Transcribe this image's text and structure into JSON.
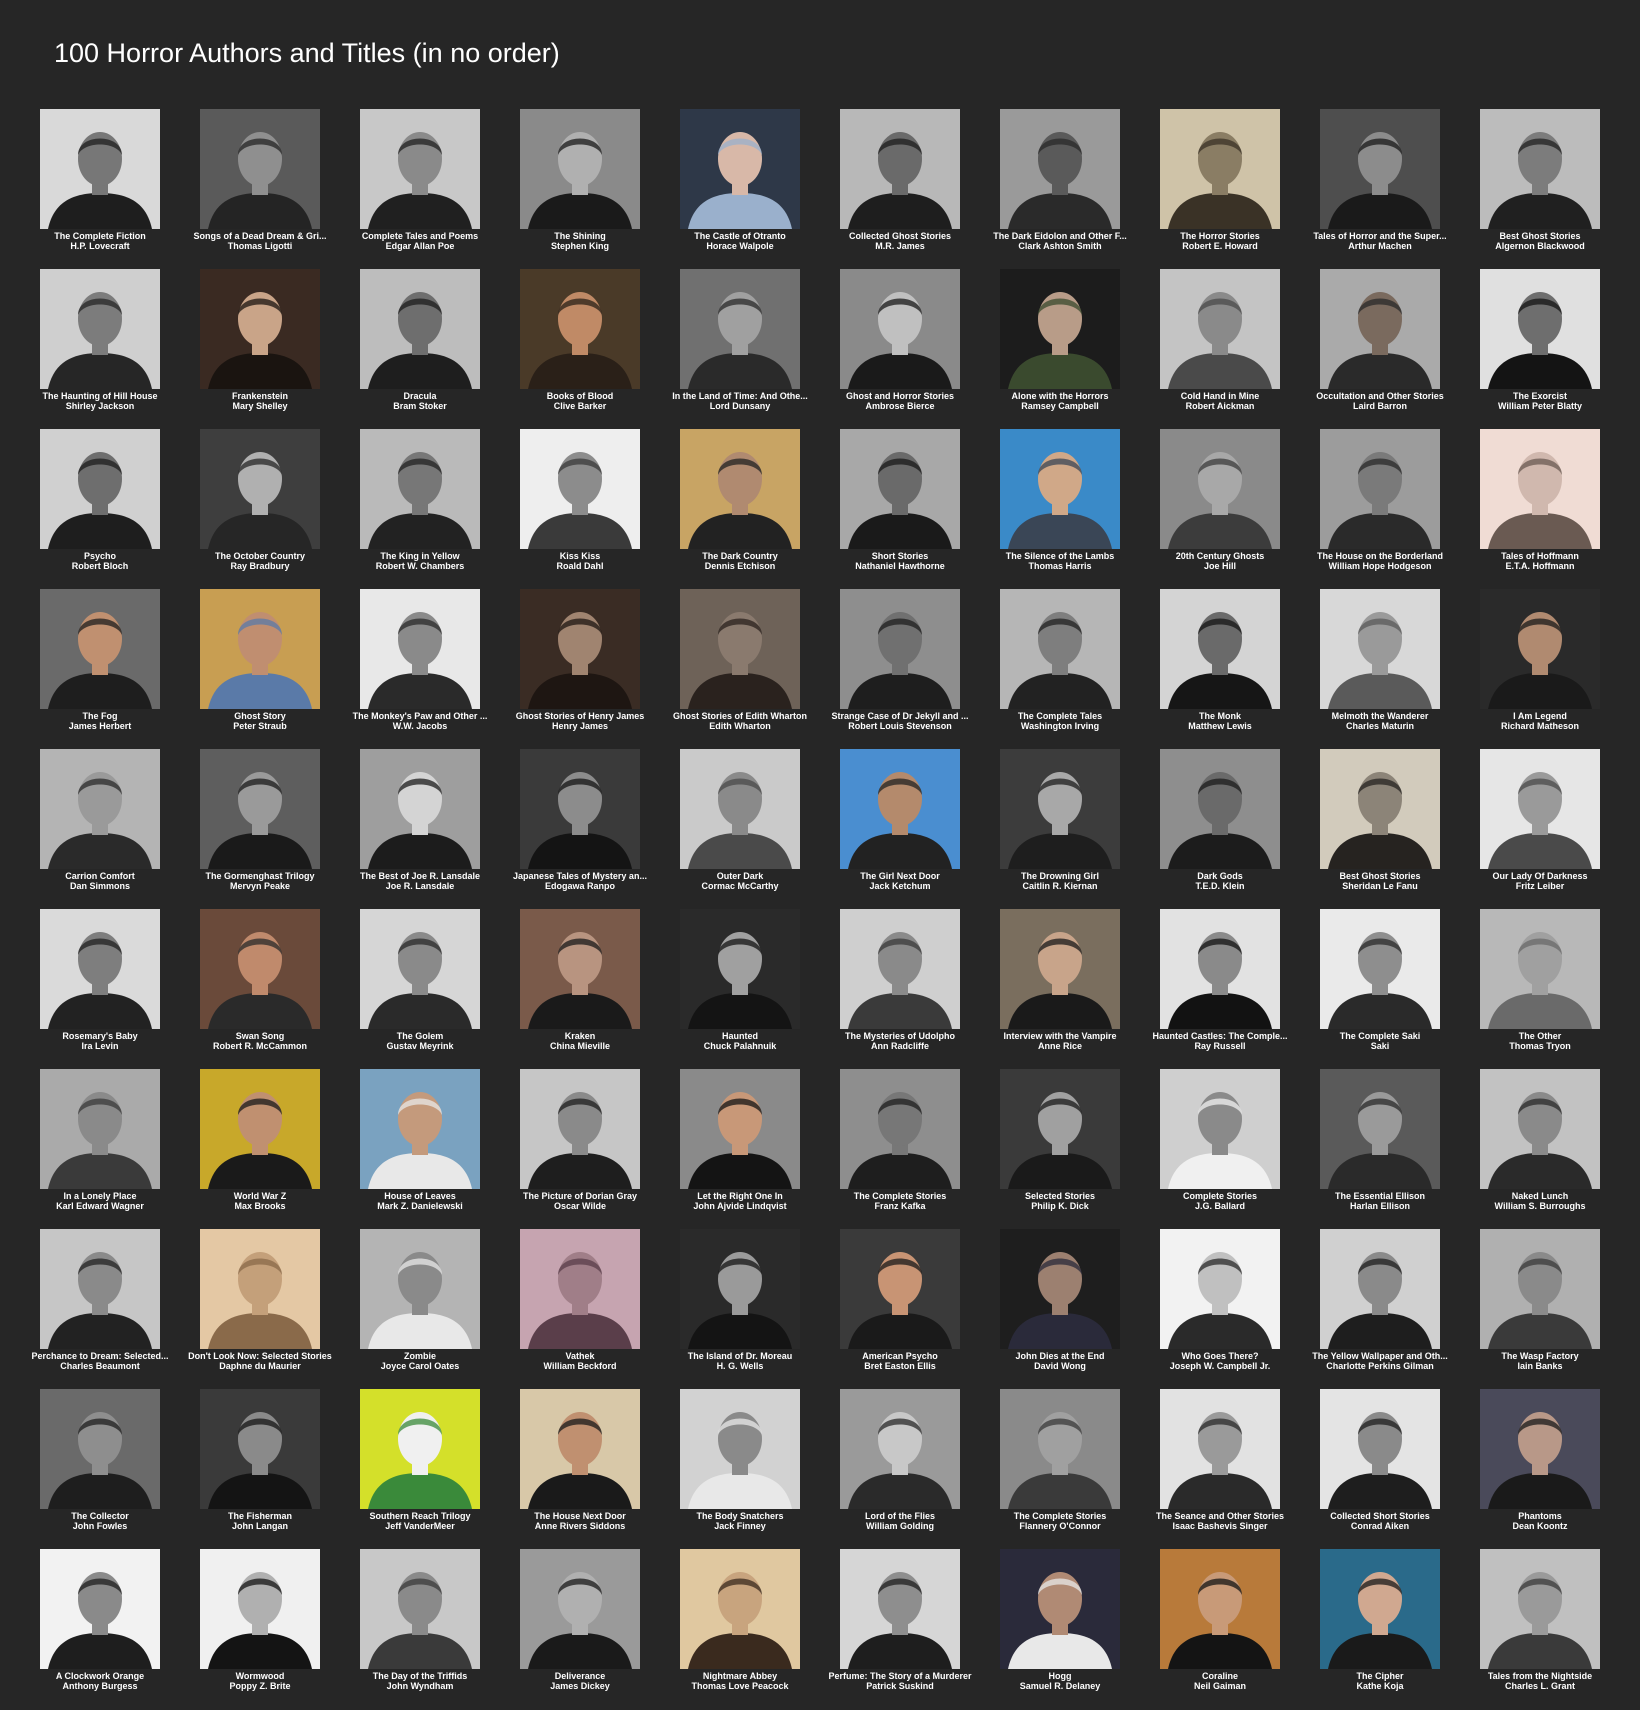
{
  "title": "100 Horror Authors and Titles (in no order)",
  "icon": "author-portrait",
  "items": [
    {
      "title": "The Complete Fiction",
      "author": "H.P. Lovecraft",
      "bg": "#d9d9d9",
      "tone": "#777777",
      "suit": "#1e1e1e"
    },
    {
      "title": "Songs of a Dead Dream & Gri...",
      "author": "Thomas Ligotti",
      "bg": "#5a5a5a",
      "tone": "#8f8f8f",
      "suit": "#242424"
    },
    {
      "title": "Complete Tales and Poems",
      "author": "Edgar Allan Poe",
      "bg": "#c8c8c8",
      "tone": "#8a8a8a",
      "suit": "#202020"
    },
    {
      "title": "The Shining",
      "author": "Stephen King",
      "bg": "#8a8a8a",
      "tone": "#b0b0b0",
      "suit": "#1a1a1a"
    },
    {
      "title": "The Castle of Otranto",
      "author": "Horace Walpole",
      "bg": "#2e3848",
      "tone": "#d8b8a8",
      "suit": "#9ab0cc"
    },
    {
      "title": "Collected Ghost Stories",
      "author": "M.R. James",
      "bg": "#b8b8b8",
      "tone": "#6a6a6a",
      "suit": "#1e1e1e"
    },
    {
      "title": "The Dark Eidolon and Other F...",
      "author": "Clark Ashton Smith",
      "bg": "#9a9a9a",
      "tone": "#5a5a5a",
      "suit": "#2a2a2a"
    },
    {
      "title": "The Horror Stories",
      "author": "Robert E. Howard",
      "bg": "#cfc3a8",
      "tone": "#8a7d64",
      "suit": "#3a3226"
    },
    {
      "title": "Tales of Horror and the Super...",
      "author": "Arthur Machen",
      "bg": "#4e4e4e",
      "tone": "#8c8c8c",
      "suit": "#1a1a1a"
    },
    {
      "title": "Best Ghost Stories",
      "author": "Algernon Blackwood",
      "bg": "#bcbcbc",
      "tone": "#7c7c7c",
      "suit": "#202020"
    },
    {
      "title": "The Haunting of Hill House",
      "author": "Shirley Jackson",
      "bg": "#cfcfcf",
      "tone": "#7c7c7c",
      "suit": "#262626"
    },
    {
      "title": "Frankenstein",
      "author": "Mary Shelley",
      "bg": "#3a2a22",
      "tone": "#c9a488",
      "suit": "#1a1410"
    },
    {
      "title": "Dracula",
      "author": "Bram Stoker",
      "bg": "#bdbdbd",
      "tone": "#6e6e6e",
      "suit": "#1e1e1e"
    },
    {
      "title": "Books of Blood",
      "author": "Clive Barker",
      "bg": "#4a3a28",
      "tone": "#c08a66",
      "suit": "#2a2018"
    },
    {
      "title": "In the Land of Time: And Othe...",
      "author": "Lord Dunsany",
      "bg": "#707070",
      "tone": "#a0a0a0",
      "suit": "#2a2a2a"
    },
    {
      "title": "Ghost and Horror Stories",
      "author": "Ambrose Bierce",
      "bg": "#8a8a8a",
      "tone": "#c0c0c0",
      "suit": "#1a1a1a"
    },
    {
      "title": "Alone with the Horrors",
      "author": "Ramsey Campbell",
      "bg": "#1c1c1c",
      "tone": "#b89c88",
      "suit": "#3a4a2e"
    },
    {
      "title": "Cold Hand in Mine",
      "author": "Robert Aickman",
      "bg": "#c4c4c4",
      "tone": "#8a8a8a",
      "suit": "#4a4a4a"
    },
    {
      "title": "Occultation and Other Stories",
      "author": "Laird Barron",
      "bg": "#aaaaaa",
      "tone": "#7a6a5e",
      "suit": "#2a2a2a"
    },
    {
      "title": "The Exorcist",
      "author": "William Peter Blatty",
      "bg": "#e0e0e0",
      "tone": "#6e6e6e",
      "suit": "#141414"
    },
    {
      "title": "Psycho",
      "author": "Robert Bloch",
      "bg": "#d0d0d0",
      "tone": "#6e6e6e",
      "suit": "#1e1e1e"
    },
    {
      "title": "The October Country",
      "author": "Ray Bradbury",
      "bg": "#3e3e3e",
      "tone": "#b0b0b0",
      "suit": "#262626"
    },
    {
      "title": "The King in Yellow",
      "author": "Robert W. Chambers",
      "bg": "#bababa",
      "tone": "#777777",
      "suit": "#222222"
    },
    {
      "title": "Kiss Kiss",
      "author": "Roald Dahl",
      "bg": "#eeeeee",
      "tone": "#8c8c8c",
      "suit": "#3a3a3a"
    },
    {
      "title": "The Dark Country",
      "author": "Dennis Etchison",
      "bg": "#c8a464",
      "tone": "#b08a70",
      "suit": "#222222"
    },
    {
      "title": "Short Stories",
      "author": "Nathaniel Hawthorne",
      "bg": "#a8a8a8",
      "tone": "#6a6a6a",
      "suit": "#1a1a1a"
    },
    {
      "title": "The Silence of the Lambs",
      "author": "Thomas Harris",
      "bg": "#3a8ac8",
      "tone": "#d0a888",
      "suit": "#3a4656"
    },
    {
      "title": "20th Century Ghosts",
      "author": "Joe Hill",
      "bg": "#8a8a8a",
      "tone": "#a8a8a8",
      "suit": "#3c3c3c"
    },
    {
      "title": "The House on the Borderland",
      "author": "William Hope Hodgeson",
      "bg": "#9c9c9c",
      "tone": "#7a7a7a",
      "suit": "#2a2a2a"
    },
    {
      "title": "Tales of Hoffmann",
      "author": "E.T.A. Hoffmann",
      "bg": "#f0dcd4",
      "tone": "#d0b8ae",
      "suit": "#6a5a52"
    },
    {
      "title": "The Fog",
      "author": "James Herbert",
      "bg": "#6a6a6a",
      "tone": "#c09070",
      "suit": "#1e1e1e"
    },
    {
      "title": "Ghost Story",
      "author": "Peter Straub",
      "bg": "#c89e52",
      "tone": "#c08e70",
      "suit": "#5a7aa8"
    },
    {
      "title": "The Monkey's Paw and Other ...",
      "author": "W.W. Jacobs",
      "bg": "#e8e8e8",
      "tone": "#8a8a8a",
      "suit": "#2a2a2a"
    },
    {
      "title": "Ghost Stories of Henry James",
      "author": "Henry James",
      "bg": "#3a2c24",
      "tone": "#a08470",
      "suit": "#1e1612"
    },
    {
      "title": "Ghost Stories of Edith Wharton",
      "author": "Edith Wharton",
      "bg": "#6e6258",
      "tone": "#8a7a6e",
      "suit": "#2a221e"
    },
    {
      "title": "Strange Case of Dr Jekyll and ...",
      "author": "Robert Louis Stevenson",
      "bg": "#8e8e8e",
      "tone": "#707070",
      "suit": "#1e1e1e"
    },
    {
      "title": "The Complete Tales",
      "author": "Washington Irving",
      "bg": "#b6b6b6",
      "tone": "#7e7e7e",
      "suit": "#222222"
    },
    {
      "title": "The Monk",
      "author": "Matthew Lewis",
      "bg": "#d4d4d4",
      "tone": "#6a6a6a",
      "suit": "#161616"
    },
    {
      "title": "Melmoth the Wanderer",
      "author": "Charles Maturin",
      "bg": "#d8d8d8",
      "tone": "#9a9a9a",
      "suit": "#5a5a5a"
    },
    {
      "title": "I Am Legend",
      "author": "Richard Matheson",
      "bg": "#2a2a2a",
      "tone": "#b08a70",
      "suit": "#1a1a1a"
    },
    {
      "title": "Carrion Comfort",
      "author": "Dan Simmons",
      "bg": "#b4b4b4",
      "tone": "#9a9a9a",
      "suit": "#2a2a2a"
    },
    {
      "title": "The Gormenghast Trilogy",
      "author": "Mervyn Peake",
      "bg": "#5e5e5e",
      "tone": "#9a9a9a",
      "suit": "#1a1a1a"
    },
    {
      "title": "The Best of Joe R. Lansdale",
      "author": "Joe R. Lansdale",
      "bg": "#9e9e9e",
      "tone": "#d4d4d4",
      "suit": "#1c1c1c"
    },
    {
      "title": "Japanese Tales of Mystery an...",
      "author": "Edogawa Ranpo",
      "bg": "#3a3a3a",
      "tone": "#8c8c8c",
      "suit": "#141414"
    },
    {
      "title": "Outer Dark",
      "author": "Cormac McCarthy",
      "bg": "#cacaca",
      "tone": "#8a8a8a",
      "suit": "#4a4a4a"
    },
    {
      "title": "The Girl Next Door",
      "author": "Jack Ketchum",
      "bg": "#4a8ed0",
      "tone": "#b48a6c",
      "suit": "#222222"
    },
    {
      "title": "The Drowning Girl",
      "author": "Caitlin R. Kiernan",
      "bg": "#3c3c3c",
      "tone": "#a8a8a8",
      "suit": "#1e1e1e"
    },
    {
      "title": "Dark Gods",
      "author": "T.E.D. Klein",
      "bg": "#8e8e8e",
      "tone": "#6a6a6a",
      "suit": "#1c1c1c"
    },
    {
      "title": "Best Ghost Stories",
      "author": "Sheridan Le Fanu",
      "bg": "#d2cbbc",
      "tone": "#8c8478",
      "suit": "#262320"
    },
    {
      "title": "Our Lady Of Darkness",
      "author": "Fritz Leiber",
      "bg": "#e6e6e6",
      "tone": "#9a9a9a",
      "suit": "#4a4a4a"
    },
    {
      "title": "Rosemary's Baby",
      "author": "Ira Levin",
      "bg": "#dadada",
      "tone": "#7e7e7e",
      "suit": "#222222"
    },
    {
      "title": "Swan Song",
      "author": "Robert R. McCammon",
      "bg": "#6a4a3a",
      "tone": "#c08a6c",
      "suit": "#2a2a2a"
    },
    {
      "title": "The Golem",
      "author": "Gustav Meyrink",
      "bg": "#d6d6d6",
      "tone": "#8a8a8a",
      "suit": "#2a2a2a"
    },
    {
      "title": "Kraken",
      "author": "China Mieville",
      "bg": "#7a5a4a",
      "tone": "#b89480",
      "suit": "#1a1a1a"
    },
    {
      "title": "Haunted",
      "author": "Chuck Palahnuik",
      "bg": "#2a2a2a",
      "tone": "#a0a0a0",
      "suit": "#141414"
    },
    {
      "title": "The Mysteries of Udolpho",
      "author": "Ann Radcliffe",
      "bg": "#cfcfcf",
      "tone": "#8a8a8a",
      "suit": "#3a3a3a"
    },
    {
      "title": "Interview with the Vampire",
      "author": "Anne Rice",
      "bg": "#7a6e5e",
      "tone": "#c8a48a",
      "suit": "#1a1a1a"
    },
    {
      "title": "Haunted Castles: The Comple...",
      "author": "Ray Russell",
      "bg": "#e2e2e2",
      "tone": "#8a8a8a",
      "suit": "#121212"
    },
    {
      "title": "The Complete Saki",
      "author": "Saki",
      "bg": "#eaeaea",
      "tone": "#8e8e8e",
      "suit": "#2a2a2a"
    },
    {
      "title": "The Other",
      "author": "Thomas Tryon",
      "bg": "#b8b8b8",
      "tone": "#a0a0a0",
      "suit": "#6a6a6a"
    },
    {
      "title": "In a Lonely Place",
      "author": "Karl Edward Wagner",
      "bg": "#aaaaaa",
      "tone": "#8a8a8a",
      "suit": "#3a3a3a"
    },
    {
      "title": "World War Z",
      "author": "Max Brooks",
      "bg": "#c8a82a",
      "tone": "#c09070",
      "suit": "#1a1a1a"
    },
    {
      "title": "House of Leaves",
      "author": "Mark Z. Danielewski",
      "bg": "#7aa2c0",
      "tone": "#c49a7c",
      "suit": "#e8e8e8"
    },
    {
      "title": "The Picture of Dorian Gray",
      "author": "Oscar Wilde",
      "bg": "#c6c6c6",
      "tone": "#8a8a8a",
      "suit": "#1e1e1e"
    },
    {
      "title": "Let the Right One In",
      "author": "John Ajvide Lindqvist",
      "bg": "#8a8a8a",
      "tone": "#c89878",
      "suit": "#141414"
    },
    {
      "title": "The Complete Stories",
      "author": "Franz Kafka",
      "bg": "#8e8e8e",
      "tone": "#777777",
      "suit": "#1e1e1e"
    },
    {
      "title": "Selected Stories",
      "author": "Philip K. Dick",
      "bg": "#3a3a3a",
      "tone": "#a0a0a0",
      "suit": "#1a1a1a"
    },
    {
      "title": "Complete Stories",
      "author": "J.G. Ballard",
      "bg": "#cfcfcf",
      "tone": "#8a8a8a",
      "suit": "#f0f0f0"
    },
    {
      "title": "The Essential Ellison",
      "author": "Harlan Ellison",
      "bg": "#5a5a5a",
      "tone": "#9a9a9a",
      "suit": "#2a2a2a"
    },
    {
      "title": "Naked Lunch",
      "author": "William S. Burroughs",
      "bg": "#c2c2c2",
      "tone": "#8a8a8a",
      "suit": "#2a2a2a"
    },
    {
      "title": "Perchance to Dream: Selected...",
      "author": "Charles Beaumont",
      "bg": "#c6c6c6",
      "tone": "#8a8a8a",
      "suit": "#222222"
    },
    {
      "title": "Don't Look Now: Selected Stories",
      "author": "Daphne du Maurier",
      "bg": "#e4c8a4",
      "tone": "#c4a07a",
      "suit": "#8a6a4a"
    },
    {
      "title": "Zombie",
      "author": "Joyce Carol Oates",
      "bg": "#b4b4b4",
      "tone": "#8a8a8a",
      "suit": "#e8e8e8"
    },
    {
      "title": "Vathek",
      "author": "William Beckford",
      "bg": "#c6a4b0",
      "tone": "#a07e88",
      "suit": "#5a3e4a"
    },
    {
      "title": "The Island of Dr. Moreau",
      "author": "H. G. Wells",
      "bg": "#2a2a2a",
      "tone": "#9a9a9a",
      "suit": "#141414"
    },
    {
      "title": "American Psycho",
      "author": "Bret Easton Ellis",
      "bg": "#3a3a3a",
      "tone": "#c89474",
      "suit": "#1a1a1a"
    },
    {
      "title": "John Dies at the End",
      "author": "David Wong",
      "bg": "#1e1e1e",
      "tone": "#9c8070",
      "suit": "#2a2a3a"
    },
    {
      "title": "Who Goes There?",
      "author": "Joseph W. Campbell Jr.",
      "bg": "#f2f2f2",
      "tone": "#c0c0c0",
      "suit": "#2a2a2a"
    },
    {
      "title": "The Yellow Wallpaper and Oth...",
      "author": "Charlotte Perkins Gilman",
      "bg": "#d0d0d0",
      "tone": "#8a8a8a",
      "suit": "#1e1e1e"
    },
    {
      "title": "The Wasp Factory",
      "author": "Iain Banks",
      "bg": "#b0b0b0",
      "tone": "#8a8a8a",
      "suit": "#3a3a3a"
    },
    {
      "title": "The Collector",
      "author": "John Fowles",
      "bg": "#6a6a6a",
      "tone": "#8e8e8e",
      "suit": "#1e1e1e"
    },
    {
      "title": "The Fisherman",
      "author": "John Langan",
      "bg": "#3a3a3a",
      "tone": "#8a8a8a",
      "suit": "#141414"
    },
    {
      "title": "Southern Reach Trilogy",
      "author": "Jeff VanderMeer",
      "bg": "#d4e02a",
      "tone": "#f0f0f0",
      "suit": "#3a8a3a"
    },
    {
      "title": "The House Next Door",
      "author": "Anne Rivers Siddons",
      "bg": "#d8c8a8",
      "tone": "#c09070",
      "suit": "#1a1a1a"
    },
    {
      "title": "The Body Snatchers",
      "author": "Jack Finney",
      "bg": "#d2d2d2",
      "tone": "#8a8a8a",
      "suit": "#e8e8e8"
    },
    {
      "title": "Lord of the Flies",
      "author": "William Golding",
      "bg": "#9a9a9a",
      "tone": "#c8c8c8",
      "suit": "#2a2a2a"
    },
    {
      "title": "The Complete Stories",
      "author": "Flannery O'Connor",
      "bg": "#8a8a8a",
      "tone": "#a0a0a0",
      "suit": "#3a3a3a"
    },
    {
      "title": "The Seance and Other Stories",
      "author": "Isaac Bashevis Singer",
      "bg": "#e2e2e2",
      "tone": "#9a9a9a",
      "suit": "#2a2a2a"
    },
    {
      "title": "Collected Short Stories",
      "author": "Conrad Aiken",
      "bg": "#e4e4e4",
      "tone": "#8a8a8a",
      "suit": "#1e1e1e"
    },
    {
      "title": "Phantoms",
      "author": "Dean Koontz",
      "bg": "#4a4a5a",
      "tone": "#b89888",
      "suit": "#1a1a1a"
    },
    {
      "title": "A Clockwork Orange",
      "author": "Anthony Burgess",
      "bg": "#f2f2f2",
      "tone": "#8a8a8a",
      "suit": "#1e1e1e"
    },
    {
      "title": "Wormwood",
      "author": "Poppy Z. Brite",
      "bg": "#f0f0f0",
      "tone": "#b0b0b0",
      "suit": "#141414"
    },
    {
      "title": "The Day of the Triffids",
      "author": "John Wyndham",
      "bg": "#c8c8c8",
      "tone": "#8a8a8a",
      "suit": "#3a3a3a"
    },
    {
      "title": "Deliverance",
      "author": "James Dickey",
      "bg": "#9a9a9a",
      "tone": "#b0b0b0",
      "suit": "#1a1a1a"
    },
    {
      "title": "Nightmare Abbey",
      "author": "Thomas Love Peacock",
      "bg": "#e0c8a0",
      "tone": "#c8a47e",
      "suit": "#3a2a1e"
    },
    {
      "title": "Perfume: The Story of a Murderer",
      "author": "Patrick Suskind",
      "bg": "#d6d6d6",
      "tone": "#8e8e8e",
      "suit": "#1e1e1e"
    },
    {
      "title": "Hogg",
      "author": "Samuel R. Delaney",
      "bg": "#2a2a3a",
      "tone": "#b08a74",
      "suit": "#e8e8e8"
    },
    {
      "title": "Coraline",
      "author": "Neil Gaiman",
      "bg": "#b87a3a",
      "tone": "#c89a78",
      "suit": "#141414"
    },
    {
      "title": "The Cipher",
      "author": "Kathe Koja",
      "bg": "#2a6a8a",
      "tone": "#d0a890",
      "suit": "#1a1a1a"
    },
    {
      "title": "Tales from the Nightside",
      "author": "Charles L. Grant",
      "bg": "#c0c0c0",
      "tone": "#9a9a9a",
      "suit": "#3a3a3a"
    }
  ]
}
